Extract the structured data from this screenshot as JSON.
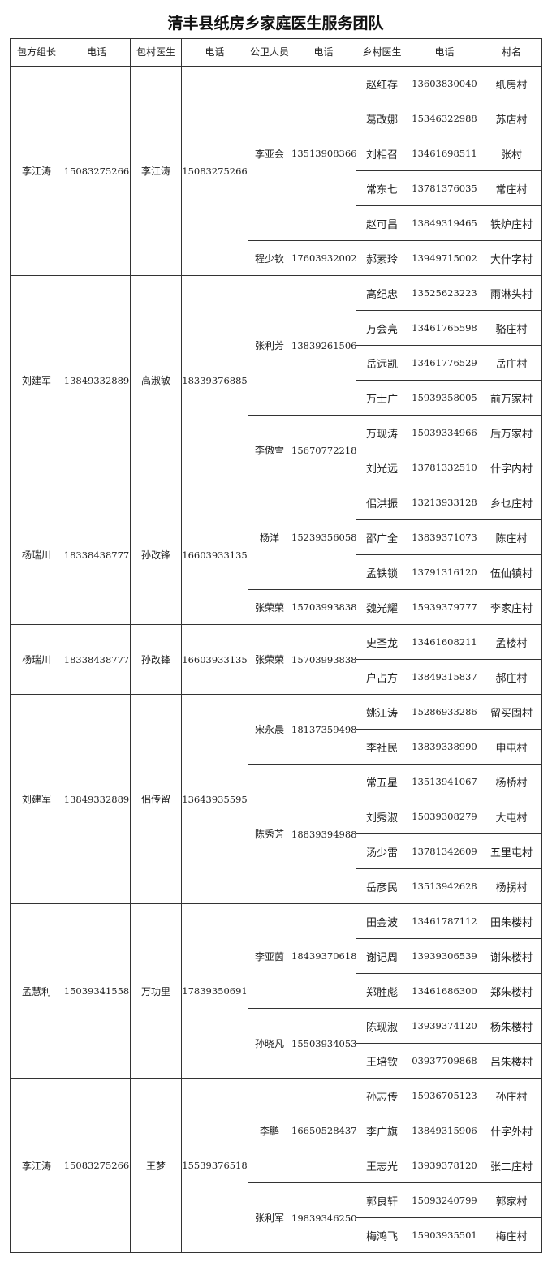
{
  "title": "清丰县纸房乡家庭医生服务团队",
  "headers": [
    "包方组长",
    "电话",
    "包村医生",
    "电话",
    "公卫人员",
    "电话",
    "乡村医生",
    "电话",
    "村名"
  ],
  "groups": [
    {
      "leader": "李江涛",
      "leader_phone": "15083275266",
      "doctor": "李江涛",
      "doctor_phone": "15083275266",
      "workers": [
        {
          "name": "李亚会",
          "phone": "13513908366",
          "villagers": [
            {
              "doctor": "赵红存",
              "phone": "13603830040",
              "village": "纸房村"
            },
            {
              "doctor": "葛改娜",
              "phone": "15346322988",
              "village": "苏店村"
            },
            {
              "doctor": "刘相召",
              "phone": "13461698511",
              "village": "张村"
            },
            {
              "doctor": "常东七",
              "phone": "13781376035",
              "village": "常庄村"
            },
            {
              "doctor": "赵可昌",
              "phone": "13849319465",
              "village": "铁炉庄村"
            }
          ]
        },
        {
          "name": "程少钦",
          "phone": "17603932002",
          "villagers": [
            {
              "doctor": "郝素玲",
              "phone": "13949715002",
              "village": "大什字村"
            }
          ]
        }
      ]
    },
    {
      "leader": "刘建军",
      "leader_phone": "13849332889",
      "doctor": "高淑敏",
      "doctor_phone": "18339376885",
      "workers": [
        {
          "name": "张利芳",
          "phone": "13839261506",
          "villagers": [
            {
              "doctor": "高纪忠",
              "phone": "13525623223",
              "village": "雨淋头村"
            },
            {
              "doctor": "万会亮",
              "phone": "13461765598",
              "village": "骆庄村"
            },
            {
              "doctor": "岳远凯",
              "phone": "13461776529",
              "village": "岳庄村"
            },
            {
              "doctor": "万士广",
              "phone": "15939358005",
              "village": "前万家村"
            }
          ]
        },
        {
          "name": "李傲雪",
          "phone": "15670772218",
          "villagers": [
            {
              "doctor": "万现涛",
              "phone": "15039334966",
              "village": "后万家村"
            },
            {
              "doctor": "刘光远",
              "phone": "13781332510",
              "village": "什字内村"
            }
          ]
        }
      ]
    },
    {
      "leader": "杨瑞川",
      "leader_phone": "18338438777",
      "doctor": "孙改锋",
      "doctor_phone": "16603933135",
      "workers": [
        {
          "name": "杨洋",
          "phone": "15239356058",
          "villagers": [
            {
              "doctor": "佀洪振",
              "phone": "13213933128",
              "village": "乡乜庄村"
            },
            {
              "doctor": "邵广全",
              "phone": "13839371073",
              "village": "陈庄村"
            },
            {
              "doctor": "孟铁锁",
              "phone": "13791316120",
              "village": "伍仙镇村"
            }
          ]
        },
        {
          "name": "张荣荣",
          "phone": "15703993838",
          "villagers": [
            {
              "doctor": "魏光耀",
              "phone": "15939379777",
              "village": "李家庄村"
            }
          ]
        }
      ]
    },
    {
      "leader": "杨瑞川",
      "leader_phone": "18338438777",
      "doctor": "孙改锋",
      "doctor_phone": "16603933135",
      "workers": [
        {
          "name": "张荣荣",
          "phone": "15703993838",
          "villagers": [
            {
              "doctor": "史圣龙",
              "phone": "13461608211",
              "village": "孟楼村"
            },
            {
              "doctor": "户占方",
              "phone": "13849315837",
              "village": "郝庄村"
            }
          ]
        }
      ]
    },
    {
      "leader": "刘建军",
      "leader_phone": "13849332889",
      "doctor": "佀传留",
      "doctor_phone": "13643935595",
      "workers": [
        {
          "name": "宋永晨",
          "phone": "18137359498",
          "villagers": [
            {
              "doctor": "姚江涛",
              "phone": "15286933286",
              "village": "留买固村"
            },
            {
              "doctor": "李社民",
              "phone": "13839338990",
              "village": "申屯村"
            }
          ]
        },
        {
          "name": "陈秀芳",
          "phone": "18839394988",
          "villagers": [
            {
              "doctor": "常五星",
              "phone": "13513941067",
              "village": "杨桥村"
            },
            {
              "doctor": "刘秀淑",
              "phone": "15039308279",
              "village": "大屯村"
            },
            {
              "doctor": "汤少雷",
              "phone": "13781342609",
              "village": "五里屯村"
            },
            {
              "doctor": "岳彦民",
              "phone": "13513942628",
              "village": "杨拐村"
            }
          ]
        }
      ]
    },
    {
      "leader": "孟慧利",
      "leader_phone": "15039341558",
      "doctor": "万功里",
      "doctor_phone": "17839350691",
      "workers": [
        {
          "name": "李亚茵",
          "phone": "18439370618",
          "villagers": [
            {
              "doctor": "田金波",
              "phone": "13461787112",
              "village": "田朱楼村"
            },
            {
              "doctor": "谢记周",
              "phone": "13939306539",
              "village": "谢朱楼村"
            },
            {
              "doctor": "郑胜彪",
              "phone": "13461686300",
              "village": "郑朱楼村"
            }
          ]
        },
        {
          "name": "孙晓凡",
          "phone": "15503934053",
          "villagers": [
            {
              "doctor": "陈现淑",
              "phone": "13939374120",
              "village": "杨朱楼村"
            },
            {
              "doctor": "王培钦",
              "phone": "03937709868",
              "village": "吕朱楼村"
            }
          ]
        }
      ]
    },
    {
      "leader": "李江涛",
      "leader_phone": "15083275266",
      "doctor": "王梦",
      "doctor_phone": "15539376518",
      "workers": [
        {
          "name": "李鹏",
          "phone": "16650528437",
          "villagers": [
            {
              "doctor": "孙志传",
              "phone": "15936705123",
              "village": "孙庄村"
            },
            {
              "doctor": "李广旗",
              "phone": "13849315906",
              "village": "什字外村"
            },
            {
              "doctor": "王志光",
              "phone": "13939378120",
              "village": "张二庄村"
            }
          ]
        },
        {
          "name": "张利军",
          "phone": "19839346250",
          "villagers": [
            {
              "doctor": "郭良轩",
              "phone": "15093240799",
              "village": "郭家村"
            },
            {
              "doctor": "梅鸿飞",
              "phone": "15903935501",
              "village": "梅庄村"
            }
          ]
        }
      ]
    }
  ]
}
